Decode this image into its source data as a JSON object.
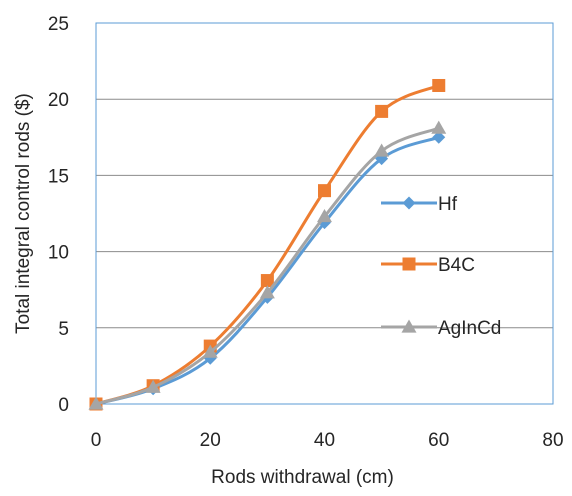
{
  "chart_data": {
    "type": "line",
    "title": "",
    "xlabel": "Rods withdrawal (cm)",
    "ylabel": "Total integral control rods ($)",
    "xlim": [
      0,
      80
    ],
    "ylim": [
      0,
      25
    ],
    "xticks": [
      0,
      20,
      40,
      60,
      80
    ],
    "yticks": [
      0,
      5,
      10,
      15,
      20,
      25
    ],
    "grid": "horizontal",
    "legend_position": "right",
    "series": [
      {
        "name": "Hf",
        "color": "#5b9bd5",
        "marker": "diamond",
        "x": [
          0,
          10,
          20,
          30,
          40,
          50,
          60
        ],
        "y": [
          0,
          1.0,
          3.0,
          7.0,
          11.9,
          16.1,
          17.5
        ]
      },
      {
        "name": "B4C",
        "color": "#ed7d31",
        "marker": "square",
        "x": [
          0,
          10,
          20,
          30,
          40,
          50,
          60
        ],
        "y": [
          0,
          1.2,
          3.8,
          8.1,
          14.0,
          19.2,
          20.9
        ]
      },
      {
        "name": "AgInCd",
        "color": "#a5a5a5",
        "marker": "triangle",
        "x": [
          0,
          10,
          20,
          30,
          40,
          50,
          60
        ],
        "y": [
          0,
          1.1,
          3.4,
          7.3,
          12.3,
          16.6,
          18.1
        ]
      }
    ]
  }
}
